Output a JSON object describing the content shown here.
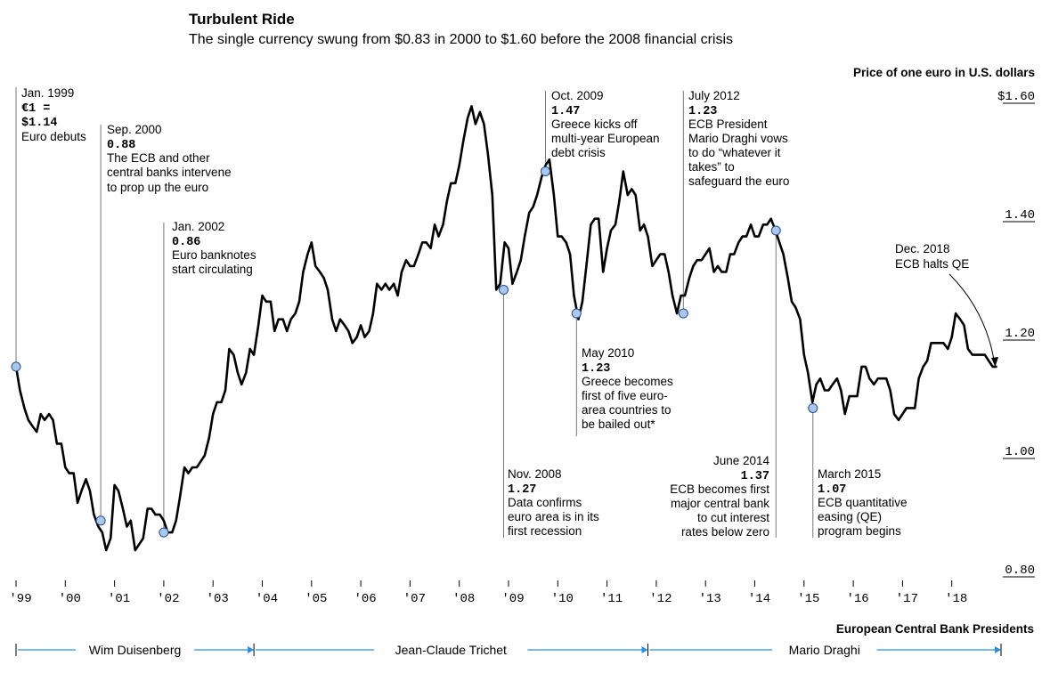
{
  "header": {
    "title": "Turbulent Ride",
    "subtitle": "The single currency swung from $0.83 in 2000 to $1.60 before the 2008 financial crisis",
    "unit_label": "Price of one euro in U.S. dollars"
  },
  "chart_data": {
    "type": "line",
    "title": "Turbulent Ride",
    "subtitle": "The single currency swung from $0.83 in 2000 to $1.60 before the 2008 financial crisis",
    "ylabel": "Price of one euro in U.S. dollars",
    "ylim": [
      0.8,
      1.6
    ],
    "yticks": [
      {
        "value": 1.6,
        "label": "$1.60"
      },
      {
        "value": 1.4,
        "label": "1.40"
      },
      {
        "value": 1.2,
        "label": "1.20"
      },
      {
        "value": 1.0,
        "label": "1.00"
      },
      {
        "value": 0.8,
        "label": "0.80"
      }
    ],
    "xlim": [
      1999.0,
      2019.0
    ],
    "xticks": [
      {
        "value": 1999,
        "label": "'99"
      },
      {
        "value": 2000,
        "label": "'00"
      },
      {
        "value": 2001,
        "label": "'01"
      },
      {
        "value": 2002,
        "label": "'02"
      },
      {
        "value": 2003,
        "label": "'03"
      },
      {
        "value": 2004,
        "label": "'04"
      },
      {
        "value": 2005,
        "label": "'05"
      },
      {
        "value": 2006,
        "label": "'06"
      },
      {
        "value": 2007,
        "label": "'07"
      },
      {
        "value": 2008,
        "label": "'08"
      },
      {
        "value": 2009,
        "label": "'09"
      },
      {
        "value": 2010,
        "label": "'10"
      },
      {
        "value": 2011,
        "label": "'11"
      },
      {
        "value": 2012,
        "label": "'12"
      },
      {
        "value": 2013,
        "label": "'13"
      },
      {
        "value": 2014,
        "label": "'14"
      },
      {
        "value": 2015,
        "label": "'15"
      },
      {
        "value": 2016,
        "label": "'16"
      },
      {
        "value": 2017,
        "label": "'17"
      },
      {
        "value": 2018,
        "label": "'18"
      }
    ],
    "series": [
      {
        "name": "EUR/USD",
        "x": [
          1999.0,
          1999.08,
          1999.17,
          1999.25,
          1999.33,
          1999.42,
          1999.5,
          1999.58,
          1999.67,
          1999.75,
          1999.83,
          1999.92,
          2000.0,
          2000.08,
          2000.17,
          2000.25,
          2000.33,
          2000.42,
          2000.5,
          2000.58,
          2000.67,
          2000.75,
          2000.83,
          2000.92,
          2001.0,
          2001.08,
          2001.17,
          2001.25,
          2001.33,
          2001.42,
          2001.5,
          2001.58,
          2001.67,
          2001.75,
          2001.83,
          2001.92,
          2002.0,
          2002.08,
          2002.17,
          2002.25,
          2002.33,
          2002.42,
          2002.5,
          2002.58,
          2002.67,
          2002.75,
          2002.83,
          2002.92,
          2003.0,
          2003.08,
          2003.17,
          2003.25,
          2003.33,
          2003.42,
          2003.5,
          2003.58,
          2003.67,
          2003.75,
          2003.83,
          2003.92,
          2004.0,
          2004.08,
          2004.17,
          2004.25,
          2004.33,
          2004.42,
          2004.5,
          2004.58,
          2004.67,
          2004.75,
          2004.83,
          2004.92,
          2005.0,
          2005.08,
          2005.17,
          2005.25,
          2005.33,
          2005.42,
          2005.5,
          2005.58,
          2005.67,
          2005.75,
          2005.83,
          2005.92,
          2006.0,
          2006.08,
          2006.17,
          2006.25,
          2006.33,
          2006.42,
          2006.5,
          2006.58,
          2006.67,
          2006.75,
          2006.83,
          2006.92,
          2007.0,
          2007.08,
          2007.17,
          2007.25,
          2007.33,
          2007.42,
          2007.5,
          2007.58,
          2007.67,
          2007.75,
          2007.83,
          2007.92,
          2008.0,
          2008.08,
          2008.17,
          2008.25,
          2008.33,
          2008.42,
          2008.5,
          2008.58,
          2008.67,
          2008.75,
          2008.83,
          2008.92,
          2009.0,
          2009.08,
          2009.17,
          2009.25,
          2009.33,
          2009.42,
          2009.5,
          2009.58,
          2009.67,
          2009.75,
          2009.83,
          2009.92,
          2010.0,
          2010.08,
          2010.17,
          2010.25,
          2010.33,
          2010.42,
          2010.5,
          2010.58,
          2010.67,
          2010.75,
          2010.83,
          2010.92,
          2011.0,
          2011.08,
          2011.17,
          2011.25,
          2011.33,
          2011.42,
          2011.5,
          2011.58,
          2011.67,
          2011.75,
          2011.83,
          2011.92,
          2012.0,
          2012.08,
          2012.17,
          2012.25,
          2012.33,
          2012.42,
          2012.5,
          2012.58,
          2012.67,
          2012.75,
          2012.83,
          2012.92,
          2013.0,
          2013.08,
          2013.17,
          2013.25,
          2013.33,
          2013.42,
          2013.5,
          2013.58,
          2013.67,
          2013.75,
          2013.83,
          2013.92,
          2014.0,
          2014.08,
          2014.17,
          2014.25,
          2014.33,
          2014.42,
          2014.5,
          2014.58,
          2014.67,
          2014.75,
          2014.83,
          2014.92,
          2015.0,
          2015.08,
          2015.17,
          2015.25,
          2015.33,
          2015.42,
          2015.5,
          2015.58,
          2015.67,
          2015.75,
          2015.83,
          2015.92,
          2016.0,
          2016.08,
          2016.17,
          2016.25,
          2016.33,
          2016.42,
          2016.5,
          2016.58,
          2016.67,
          2016.75,
          2016.83,
          2016.92,
          2017.0,
          2017.08,
          2017.17,
          2017.25,
          2017.33,
          2017.42,
          2017.5,
          2017.58,
          2017.67,
          2017.75,
          2017.83,
          2017.92,
          2018.0,
          2018.08,
          2018.17,
          2018.25,
          2018.33,
          2018.42,
          2018.5,
          2018.58,
          2018.67,
          2018.75,
          2018.83,
          2018.92
        ],
        "y": [
          1.14,
          1.1,
          1.07,
          1.05,
          1.04,
          1.03,
          1.06,
          1.05,
          1.06,
          1.05,
          1.01,
          1.01,
          0.97,
          0.96,
          0.96,
          0.91,
          0.93,
          0.95,
          0.93,
          0.89,
          0.87,
          0.86,
          0.83,
          0.85,
          0.94,
          0.93,
          0.9,
          0.87,
          0.88,
          0.83,
          0.84,
          0.85,
          0.9,
          0.9,
          0.89,
          0.89,
          0.88,
          0.86,
          0.86,
          0.88,
          0.92,
          0.97,
          0.96,
          0.97,
          0.97,
          0.98,
          0.99,
          1.02,
          1.06,
          1.08,
          1.08,
          1.1,
          1.17,
          1.16,
          1.13,
          1.11,
          1.13,
          1.17,
          1.16,
          1.21,
          1.26,
          1.25,
          1.25,
          1.2,
          1.22,
          1.22,
          1.2,
          1.22,
          1.23,
          1.25,
          1.3,
          1.33,
          1.35,
          1.31,
          1.3,
          1.29,
          1.27,
          1.22,
          1.2,
          1.22,
          1.21,
          1.2,
          1.18,
          1.19,
          1.21,
          1.19,
          1.2,
          1.23,
          1.28,
          1.27,
          1.28,
          1.27,
          1.28,
          1.26,
          1.3,
          1.32,
          1.31,
          1.31,
          1.33,
          1.35,
          1.35,
          1.34,
          1.38,
          1.36,
          1.38,
          1.42,
          1.45,
          1.45,
          1.48,
          1.52,
          1.56,
          1.58,
          1.55,
          1.57,
          1.55,
          1.5,
          1.43,
          1.27,
          1.28,
          1.35,
          1.34,
          1.28,
          1.3,
          1.32,
          1.36,
          1.4,
          1.41,
          1.43,
          1.46,
          1.48,
          1.49,
          1.43,
          1.36,
          1.36,
          1.35,
          1.33,
          1.26,
          1.22,
          1.25,
          1.31,
          1.38,
          1.39,
          1.39,
          1.3,
          1.34,
          1.37,
          1.38,
          1.42,
          1.47,
          1.43,
          1.44,
          1.43,
          1.37,
          1.38,
          1.36,
          1.31,
          1.32,
          1.33,
          1.33,
          1.3,
          1.26,
          1.23,
          1.26,
          1.26,
          1.29,
          1.31,
          1.32,
          1.32,
          1.33,
          1.34,
          1.3,
          1.31,
          1.3,
          1.3,
          1.33,
          1.33,
          1.35,
          1.36,
          1.36,
          1.38,
          1.36,
          1.36,
          1.38,
          1.38,
          1.39,
          1.37,
          1.35,
          1.33,
          1.29,
          1.25,
          1.24,
          1.22,
          1.16,
          1.13,
          1.08,
          1.11,
          1.12,
          1.1,
          1.1,
          1.11,
          1.12,
          1.1,
          1.06,
          1.09,
          1.09,
          1.09,
          1.14,
          1.14,
          1.12,
          1.11,
          1.12,
          1.12,
          1.12,
          1.1,
          1.06,
          1.05,
          1.06,
          1.07,
          1.07,
          1.07,
          1.12,
          1.14,
          1.15,
          1.18,
          1.18,
          1.18,
          1.18,
          1.17,
          1.19,
          1.23,
          1.22,
          1.21,
          1.17,
          1.16,
          1.16,
          1.16,
          1.16,
          1.15,
          1.14,
          1.14
        ]
      }
    ],
    "event_markers": [
      {
        "x": 1999.0,
        "y": 1.14
      },
      {
        "x": 2000.72,
        "y": 0.88
      },
      {
        "x": 2002.0,
        "y": 0.86
      },
      {
        "x": 2008.9,
        "y": 1.27
      },
      {
        "x": 2009.75,
        "y": 1.47
      },
      {
        "x": 2010.38,
        "y": 1.23
      },
      {
        "x": 2012.55,
        "y": 1.23
      },
      {
        "x": 2014.43,
        "y": 1.37
      },
      {
        "x": 2015.18,
        "y": 1.07
      }
    ]
  },
  "annotations": {
    "jan1999": {
      "date": "Jan. 1999",
      "value": "€1 =",
      "value2": "$1.14",
      "text1": "Euro debuts"
    },
    "sep2000": {
      "date": "Sep. 2000",
      "value": "0.88",
      "text1": "The ECB and other",
      "text2": "central banks intervene",
      "text3": "to prop up the euro"
    },
    "jan2002": {
      "date": "Jan. 2002",
      "value": "0.86",
      "text1": "Euro banknotes",
      "text2": "start circulating"
    },
    "oct2009": {
      "date": "Oct. 2009",
      "value": "1.47",
      "text1": "Greece kicks off",
      "text2": "multi-year European",
      "text3": "debt crisis"
    },
    "jul2012": {
      "date": "July 2012",
      "value": "1.23",
      "text1": "ECB President",
      "text2": "Mario Draghi vows",
      "text3": "to do “whatever it",
      "text4": "takes” to",
      "text5": "safeguard the euro"
    },
    "may2010": {
      "date": "May 2010",
      "value": "1.23",
      "text1": "Greece becomes",
      "text2": "first of five euro-",
      "text3": "area countries to",
      "text4": "be bailed out*"
    },
    "nov2008": {
      "date": "Nov. 2008",
      "value": "1.27",
      "text1": "Data confirms",
      "text2": "euro area is in its",
      "text3": "first recession"
    },
    "jun2014": {
      "date": "June 2014",
      "value": "1.37",
      "text1": "ECB becomes first",
      "text2": "major central bank",
      "text3": "to cut interest",
      "text4": "rates below zero"
    },
    "mar2015": {
      "date": "March 2015",
      "value": "1.07",
      "text1": "ECB quantitative",
      "text2": "easing (QE)",
      "text3": "program begins"
    },
    "dec2018": {
      "date": "Dec. 2018",
      "text1": "ECB halts QE"
    }
  },
  "presidents": {
    "title": "European Central Bank Presidents",
    "items": [
      {
        "name": "Wim Duisenberg",
        "start": 1999.0,
        "end": 2003.83
      },
      {
        "name": "Jean-Claude Trichet",
        "start": 2003.83,
        "end": 2011.83
      },
      {
        "name": "Mario Draghi",
        "start": 2011.83,
        "end": 2019.0
      }
    ]
  },
  "colors": {
    "line": "#000000",
    "marker_fill": "#a9c8f0",
    "marker_stroke": "#2a4f8a",
    "president_arrow": "#2a8ee0",
    "gridline": "#000000",
    "leader": "#777777"
  }
}
